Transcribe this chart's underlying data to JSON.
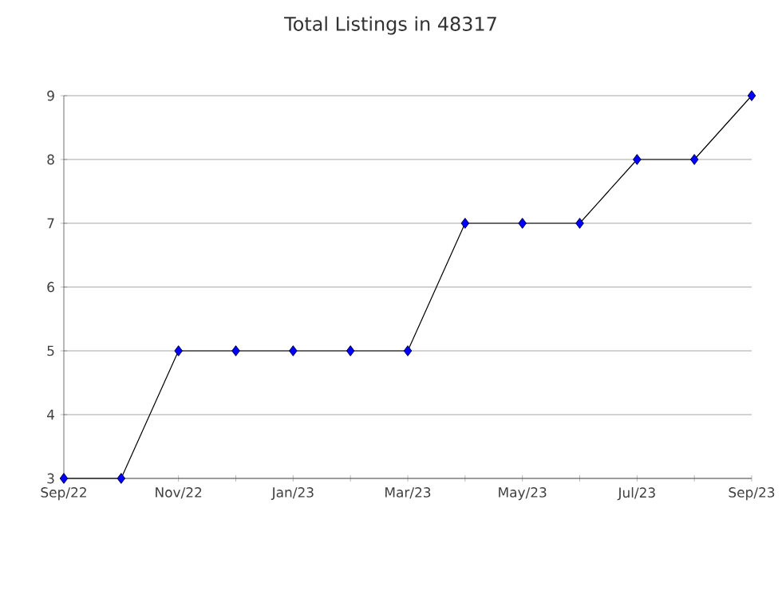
{
  "chart_data": {
    "type": "line",
    "title": "Total Listings in 48317",
    "categories": [
      "Sep/22",
      null,
      "Nov/22",
      null,
      "Jan/23",
      null,
      "Mar/23",
      null,
      "May/23",
      null,
      "Jul/23",
      null,
      "Sep/23"
    ],
    "series": [
      {
        "color": "#0000ff",
        "values": [
          3,
          3,
          5,
          5,
          5,
          5,
          5,
          7,
          7,
          7,
          8,
          8,
          9
        ]
      }
    ],
    "ylim": [
      3,
      9
    ],
    "yticks": [
      3,
      4,
      5,
      6,
      7,
      8,
      9
    ],
    "grid": "y",
    "marker": "diamond",
    "line_style": "solid"
  }
}
